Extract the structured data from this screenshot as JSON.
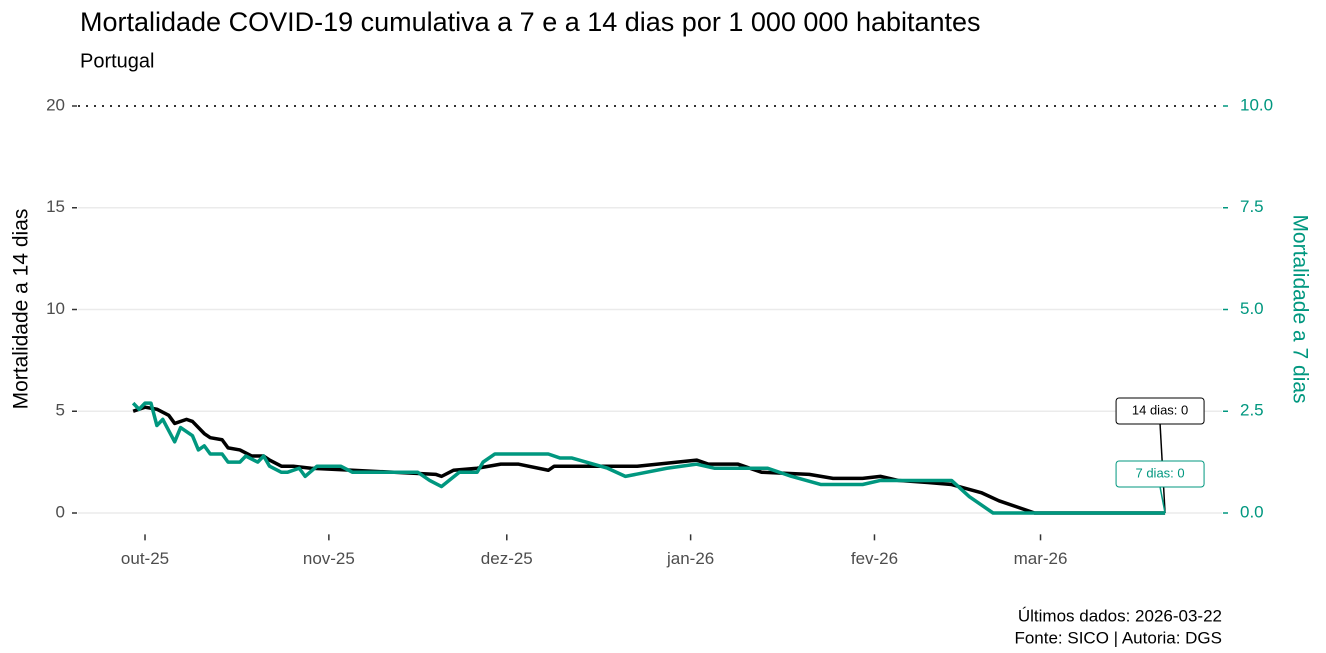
{
  "chart_data": {
    "type": "line",
    "title": "Mortalidade COVID-19 cumulativa a 7 e a 14 dias por 1 000 000 habitantes",
    "subtitle": "Portugal",
    "ylabel": "Mortalidade a 14 dias",
    "y2label": "Mortalidade a 7 dias",
    "caption": [
      "Últimos dados: 2026-03-22",
      "Fonte: SICO | Autoria: DGS"
    ],
    "xlim": [
      -11.3,
      181.6
    ],
    "xticks": [
      {
        "value": 0,
        "label": "out-25"
      },
      {
        "value": 31,
        "label": "nov-25"
      },
      {
        "value": 61,
        "label": "dez-25"
      },
      {
        "value": 92,
        "label": "jan-26"
      },
      {
        "value": 123,
        "label": "fev-26"
      },
      {
        "value": 151,
        "label": "mar-26"
      }
    ],
    "ylim": [
      -1,
      21
    ],
    "yticks": [
      0,
      5,
      10,
      15,
      20
    ],
    "y2lim": [
      -0.5,
      10.5
    ],
    "y2ticks": [
      {
        "value": 0,
        "label": "0.0"
      },
      2.5,
      {
        "value": 5,
        "label": "5.0"
      },
      7.5,
      {
        "value": 10,
        "label": "10.0"
      }
    ],
    "reference_line": 20,
    "grid": true,
    "series": [
      {
        "color": "#000000",
        "axis": "y",
        "end_label": "14 dias: 0",
        "x": [
          -2,
          0,
          2,
          4,
          5,
          7,
          8,
          10,
          11,
          13,
          14,
          16,
          18,
          20,
          21,
          23,
          25,
          28,
          35,
          42,
          49,
          50,
          52,
          56,
          60,
          63,
          68,
          69,
          83,
          93,
          95,
          100,
          104,
          112,
          116,
          121,
          124,
          127,
          132,
          136,
          141,
          144,
          147,
          150,
          172
        ],
        "values": [
          5.0,
          5.2,
          5.1,
          4.8,
          4.4,
          4.6,
          4.5,
          3.9,
          3.7,
          3.6,
          3.2,
          3.1,
          2.8,
          2.8,
          2.6,
          2.3,
          2.3,
          2.2,
          2.1,
          2.0,
          1.9,
          1.8,
          2.1,
          2.2,
          2.4,
          2.4,
          2.1,
          2.3,
          2.3,
          2.6,
          2.4,
          2.4,
          2.0,
          1.9,
          1.7,
          1.7,
          1.8,
          1.6,
          1.5,
          1.4,
          1.0,
          0.6,
          0.3,
          0,
          0
        ]
      },
      {
        "color": "#00977f",
        "axis": "y2",
        "end_label": "7 dias: 0",
        "x": [
          -2,
          -1,
          0,
          1,
          2,
          3,
          5,
          6,
          8,
          9,
          10,
          11,
          13,
          14,
          16,
          17,
          19,
          20,
          21,
          23,
          24,
          26,
          27,
          29,
          33,
          35,
          46,
          48,
          50,
          53,
          56,
          57,
          59,
          68,
          70,
          72,
          78,
          81,
          88,
          93,
          96,
          105,
          109,
          114,
          121,
          124,
          136,
          139,
          143,
          172
        ],
        "values": [
          2.7,
          2.55,
          2.7,
          2.7,
          2.15,
          2.3,
          1.75,
          2.1,
          1.9,
          1.55,
          1.65,
          1.45,
          1.45,
          1.25,
          1.25,
          1.4,
          1.25,
          1.4,
          1.15,
          1.0,
          1.0,
          1.1,
          0.9,
          1.15,
          1.15,
          1.0,
          1.0,
          0.8,
          0.65,
          1.0,
          1.0,
          1.25,
          1.45,
          1.45,
          1.35,
          1.35,
          1.1,
          0.9,
          1.1,
          1.2,
          1.1,
          1.1,
          0.9,
          0.7,
          0.7,
          0.8,
          0.8,
          0.4,
          0,
          0
        ]
      }
    ]
  }
}
